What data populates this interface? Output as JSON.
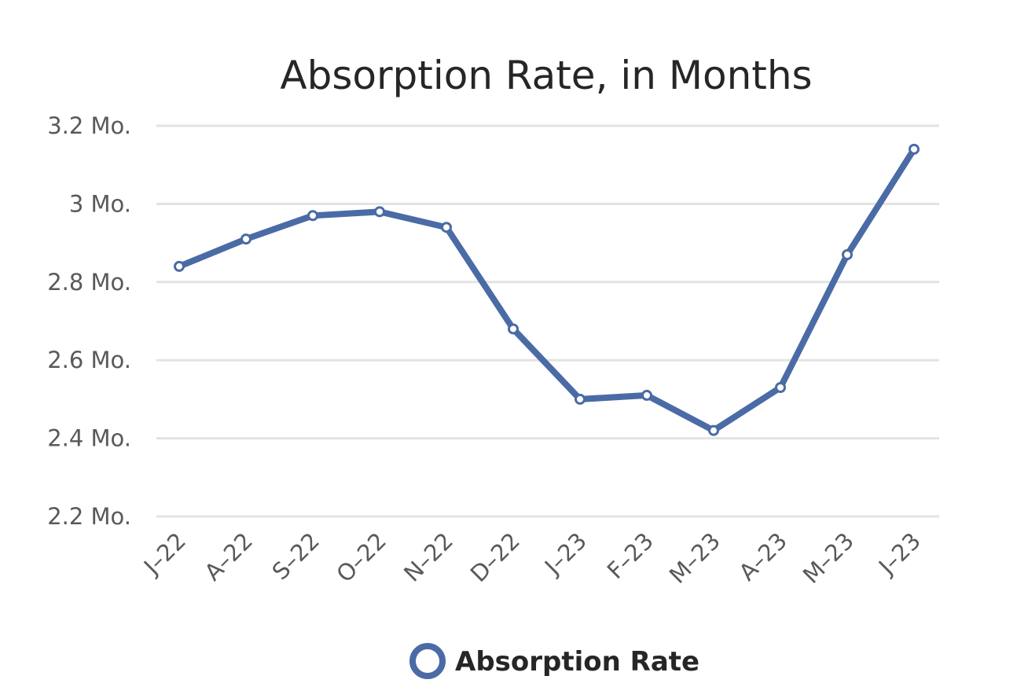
{
  "chart_data": {
    "type": "line",
    "title": "Absorption Rate, in Months",
    "xlabel": "",
    "ylabel": "",
    "categories": [
      "J–22",
      "A–22",
      "S–22",
      "O–22",
      "N–22",
      "D–22",
      "J–23",
      "F–23",
      "M–23",
      "A–23",
      "M–23",
      "J–23"
    ],
    "series": [
      {
        "name": "Absorption Rate",
        "values": [
          2.84,
          2.91,
          2.97,
          2.98,
          2.94,
          2.68,
          2.5,
          2.51,
          2.42,
          2.53,
          2.87,
          3.14
        ],
        "color": "#4A6BA5"
      }
    ],
    "ylim": [
      2.2,
      3.2
    ],
    "yticks": [
      2.2,
      2.4,
      2.6,
      2.8,
      3.0,
      3.2
    ],
    "ytick_labels": [
      "2.2 Mo.",
      "2.4 Mo.",
      "2.6 Mo.",
      "2.8 Mo.",
      "3 Mo.",
      "3.2 Mo."
    ],
    "grid": true,
    "legend_position": "bottom",
    "gridline_color": "#E3E3E3"
  }
}
